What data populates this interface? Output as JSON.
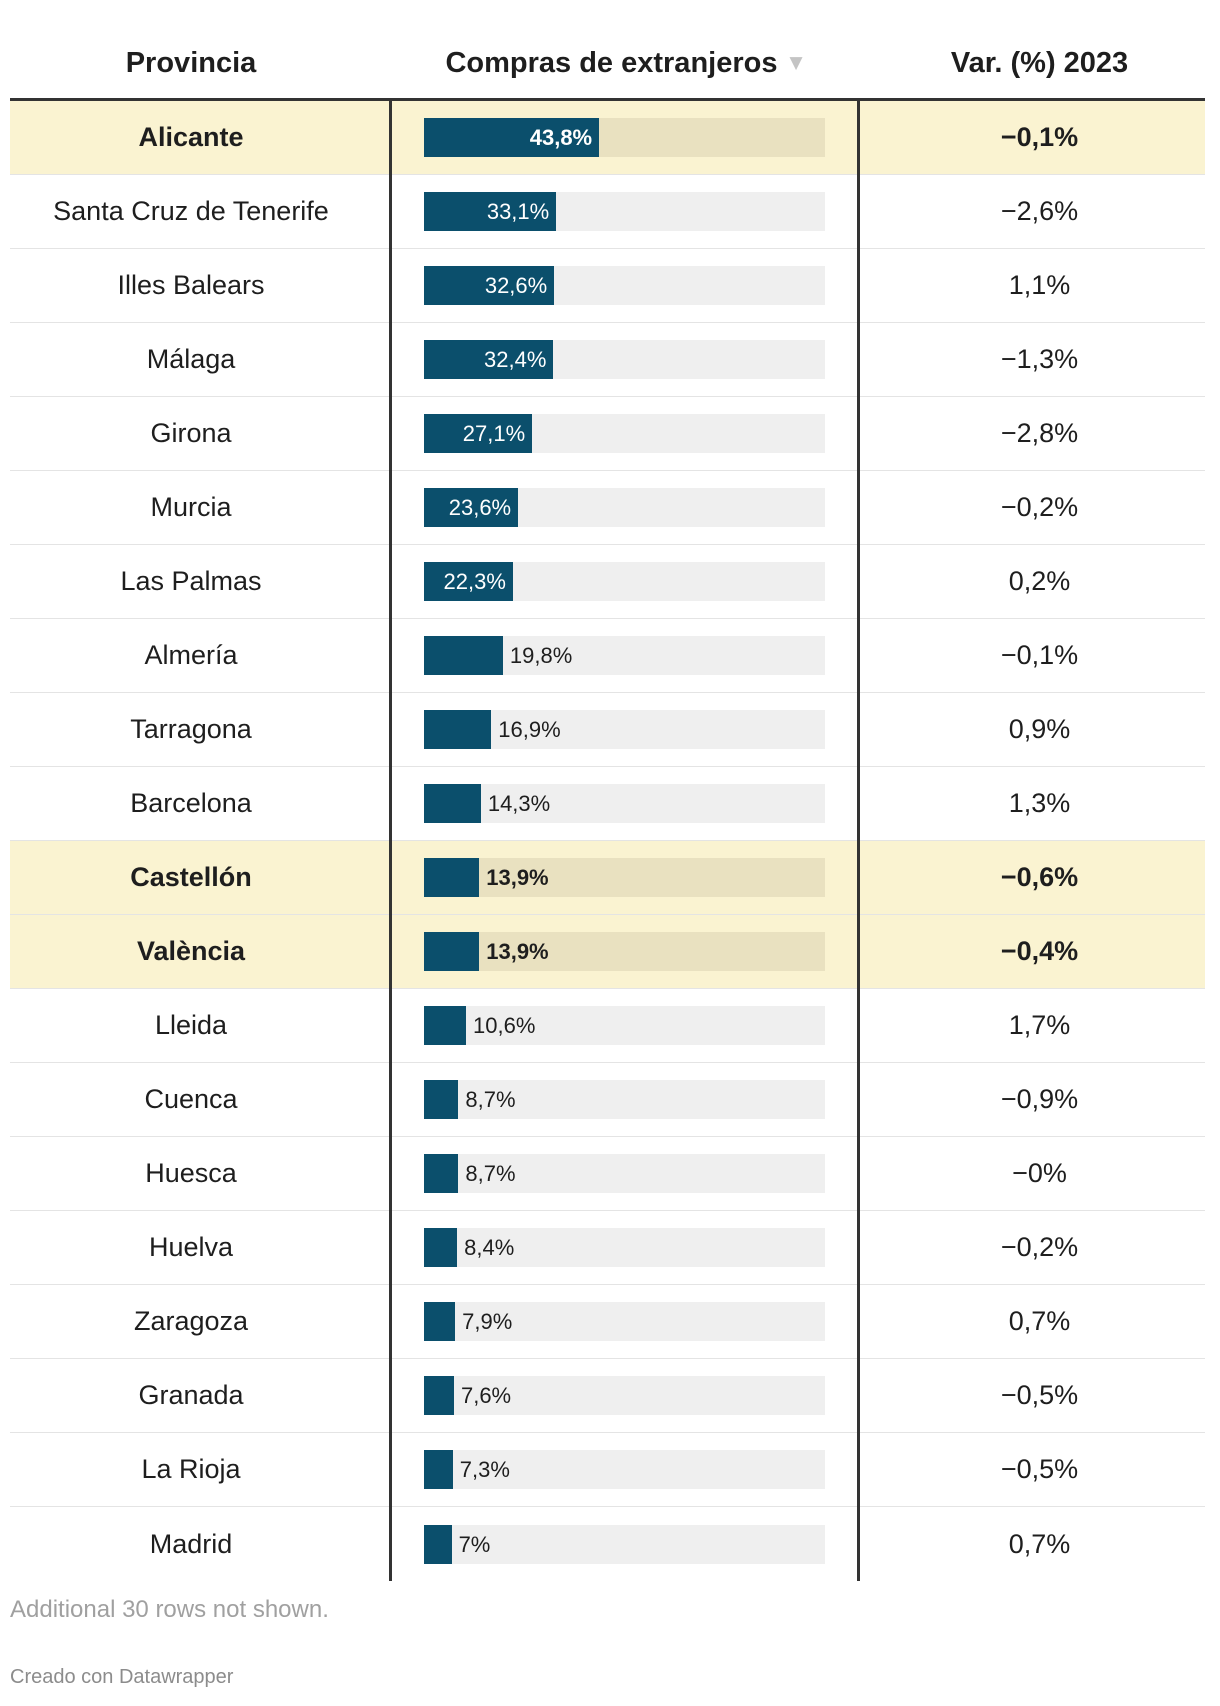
{
  "chart_data": {
    "type": "table",
    "columns": {
      "provincia": "Provincia",
      "compras": "Compras de extranjeros",
      "sort_icon": "▼",
      "var": "Var. (%) 2023"
    },
    "bar_range": [
      0,
      100
    ],
    "rows": [
      {
        "provincia": "Alicante",
        "compras": 43.8,
        "compras_label": "43,8%",
        "var": "−0,1%",
        "highlight": true
      },
      {
        "provincia": "Santa Cruz de Tenerife",
        "compras": 33.1,
        "compras_label": "33,1%",
        "var": "−2,6%",
        "highlight": false
      },
      {
        "provincia": "Illes Balears",
        "compras": 32.6,
        "compras_label": "32,6%",
        "var": "1,1%",
        "highlight": false
      },
      {
        "provincia": "Málaga",
        "compras": 32.4,
        "compras_label": "32,4%",
        "var": "−1,3%",
        "highlight": false
      },
      {
        "provincia": "Girona",
        "compras": 27.1,
        "compras_label": "27,1%",
        "var": "−2,8%",
        "highlight": false
      },
      {
        "provincia": "Murcia",
        "compras": 23.6,
        "compras_label": "23,6%",
        "var": "−0,2%",
        "highlight": false
      },
      {
        "provincia": "Las Palmas",
        "compras": 22.3,
        "compras_label": "22,3%",
        "var": "0,2%",
        "highlight": false
      },
      {
        "provincia": "Almería",
        "compras": 19.8,
        "compras_label": "19,8%",
        "var": "−0,1%",
        "highlight": false
      },
      {
        "provincia": "Tarragona",
        "compras": 16.9,
        "compras_label": "16,9%",
        "var": "0,9%",
        "highlight": false
      },
      {
        "provincia": "Barcelona",
        "compras": 14.3,
        "compras_label": "14,3%",
        "var": "1,3%",
        "highlight": false
      },
      {
        "provincia": "Castellón",
        "compras": 13.9,
        "compras_label": "13,9%",
        "var": "−0,6%",
        "highlight": true
      },
      {
        "provincia": "València",
        "compras": 13.9,
        "compras_label": "13,9%",
        "var": "−0,4%",
        "highlight": true
      },
      {
        "provincia": "Lleida",
        "compras": 10.6,
        "compras_label": "10,6%",
        "var": "1,7%",
        "highlight": false
      },
      {
        "provincia": "Cuenca",
        "compras": 8.7,
        "compras_label": "8,7%",
        "var": "−0,9%",
        "highlight": false
      },
      {
        "provincia": "Huesca",
        "compras": 8.7,
        "compras_label": "8,7%",
        "var": "−0%",
        "highlight": false
      },
      {
        "provincia": "Huelva",
        "compras": 8.4,
        "compras_label": "8,4%",
        "var": "−0,2%",
        "highlight": false
      },
      {
        "provincia": "Zaragoza",
        "compras": 7.9,
        "compras_label": "7,9%",
        "var": "0,7%",
        "highlight": false
      },
      {
        "provincia": "Granada",
        "compras": 7.6,
        "compras_label": "7,6%",
        "var": "−0,5%",
        "highlight": false
      },
      {
        "provincia": "La Rioja",
        "compras": 7.3,
        "compras_label": "7,3%",
        "var": "−0,5%",
        "highlight": false
      },
      {
        "provincia": "Madrid",
        "compras": 7,
        "compras_label": "7%",
        "var": "0,7%",
        "highlight": false
      }
    ]
  },
  "footer": {
    "note": "Additional 30 rows not shown.",
    "credit": "Creado con Datawrapper"
  },
  "colors": {
    "bar": "#0b4f6c",
    "track": "#efefef",
    "highlight_row": "#faf3d1",
    "highlight_track": "#e9e1c0",
    "rule": "#333333"
  }
}
